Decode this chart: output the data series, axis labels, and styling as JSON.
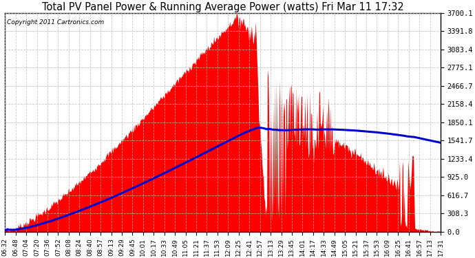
{
  "title": "Total PV Panel Power & Running Average Power (watts) Fri Mar 11 17:32",
  "copyright": "Copyright 2011 Cartronics.com",
  "background_color": "#ffffff",
  "fill_color": "#ff0000",
  "line_color": "#0000cc",
  "grid_color": "#bbbbbb",
  "yticks": [
    0.0,
    308.3,
    616.7,
    925.0,
    1233.4,
    1541.7,
    1850.1,
    2158.4,
    2466.7,
    2775.1,
    3083.4,
    3391.8,
    3700.1
  ],
  "ymax": 3700.1,
  "xtick_labels": [
    "06:32",
    "06:48",
    "07:04",
    "07:20",
    "07:36",
    "07:52",
    "08:08",
    "08:24",
    "08:40",
    "08:57",
    "09:13",
    "09:29",
    "09:45",
    "10:01",
    "10:17",
    "10:33",
    "10:49",
    "11:05",
    "11:21",
    "11:37",
    "11:53",
    "12:09",
    "12:25",
    "12:41",
    "12:57",
    "13:13",
    "13:29",
    "13:45",
    "14:01",
    "14:17",
    "14:33",
    "14:49",
    "15:05",
    "15:21",
    "15:37",
    "15:53",
    "16:09",
    "16:25",
    "16:41",
    "16:57",
    "17:13",
    "17:31"
  ],
  "n_points": 660,
  "figsize": [
    6.9,
    3.75
  ],
  "dpi": 100
}
